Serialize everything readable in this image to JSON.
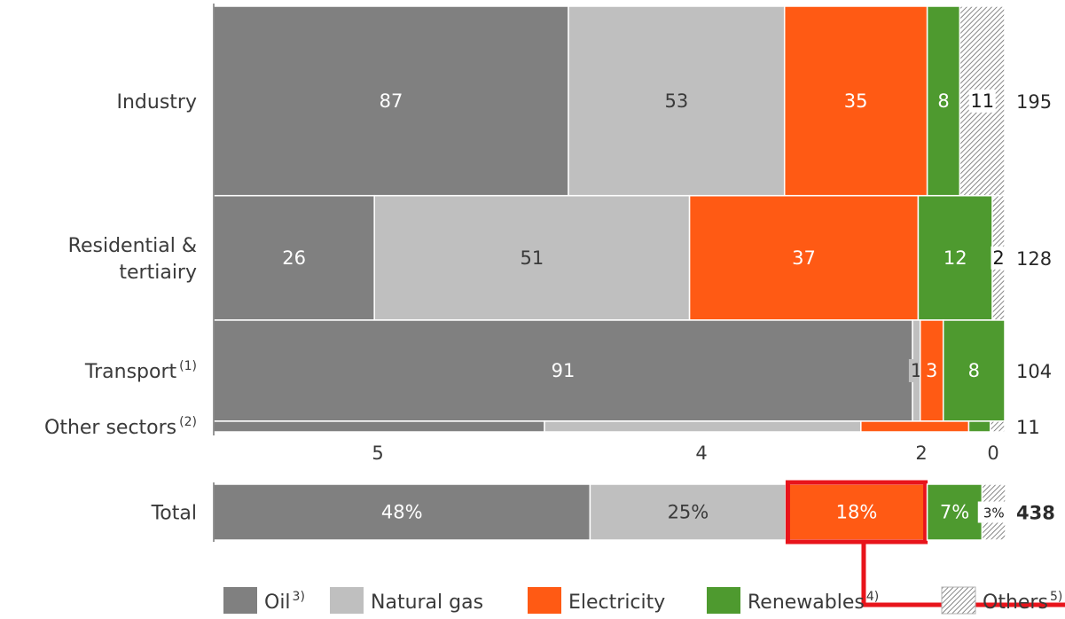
{
  "chart_data": {
    "type": "bar",
    "orientation": "horizontal",
    "stacked": true,
    "variable_width": true,
    "categories": [
      "Industry",
      "Residential &\ntertiairy",
      "Transport",
      "Other sectors"
    ],
    "category_superscripts": [
      "",
      "",
      "(1)",
      "(2)"
    ],
    "totals": [
      "195",
      "128",
      "104",
      "11"
    ],
    "series": [
      {
        "name": "Oil",
        "superscript": "3)",
        "color": "#808080",
        "values": [
          87,
          26,
          91,
          4.6
        ],
        "labels": [
          "87",
          "26",
          "91",
          ""
        ],
        "label_color": "#ffffff"
      },
      {
        "name": "Natural gas",
        "superscript": "",
        "color": "#bfbfbf",
        "values": [
          53,
          51,
          1,
          4.4
        ],
        "labels": [
          "53",
          "51",
          "1",
          ""
        ],
        "label_color": "#3a3a3a"
      },
      {
        "name": "Electricity",
        "superscript": "",
        "color": "#ff5a14",
        "values": [
          35,
          37,
          3,
          1.5
        ],
        "labels": [
          "35",
          "37",
          "3",
          ""
        ],
        "label_color": "#ffffff"
      },
      {
        "name": "Renewables",
        "superscript": "4)",
        "color": "#4e9a2f",
        "values": [
          8,
          12,
          8,
          0.3
        ],
        "labels": [
          "8",
          "12",
          "8",
          ""
        ],
        "label_color": "#ffffff"
      },
      {
        "name": "Others",
        "superscript": "5)",
        "color": "hatch",
        "values": [
          11,
          2,
          0,
          0.2
        ],
        "labels": [
          "11",
          "2",
          "",
          ""
        ],
        "label_color": "#1a1a1a"
      }
    ],
    "axis_tick_labels": [
      "5",
      "4",
      "2",
      "0"
    ],
    "total_row": {
      "label": "Total",
      "value": "438",
      "shares": [
        48,
        25,
        18,
        7,
        3
      ],
      "labels": [
        "48%",
        "25%",
        "18%",
        "7%",
        "3%"
      ],
      "highlighted_segment": "Electricity",
      "highlight_color": "#e8141b"
    },
    "legend_position": "bottom"
  }
}
